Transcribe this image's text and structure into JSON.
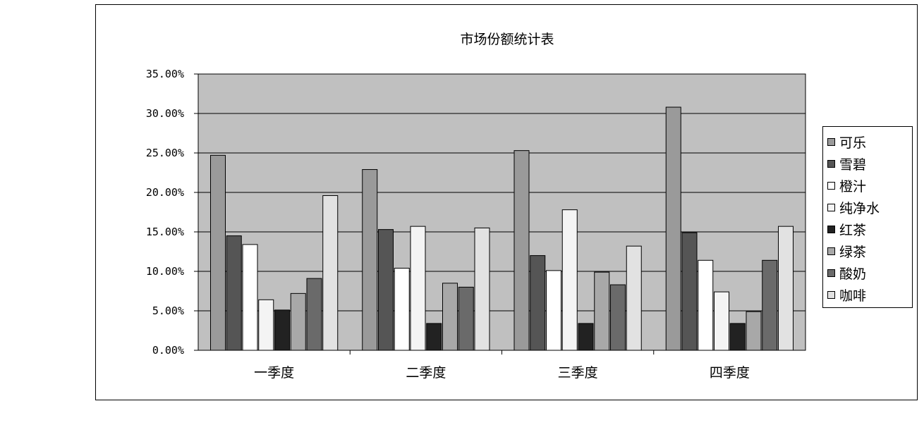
{
  "chart_data": {
    "type": "bar",
    "title": "市场份额统计表",
    "categories": [
      "一季度",
      "二季度",
      "三季度",
      "四季度"
    ],
    "ylim": [
      0,
      0.35
    ],
    "yticks": [
      "0.00%",
      "5.00%",
      "10.00%",
      "15.00%",
      "20.00%",
      "25.00%",
      "30.00%",
      "35.00%"
    ],
    "grid": true,
    "legend_position": "right",
    "plot_background": "#c0c0c0",
    "series": [
      {
        "name": "可乐",
        "color": "#9a9a9a",
        "values": [
          0.247,
          0.229,
          0.253,
          0.308
        ]
      },
      {
        "name": "雪碧",
        "color": "#555555",
        "values": [
          0.145,
          0.153,
          0.12,
          0.149
        ]
      },
      {
        "name": "橙汁",
        "color": "#ffffff",
        "values": [
          0.134,
          0.104,
          0.101,
          0.114
        ]
      },
      {
        "name": "纯净水",
        "color": "#f4f4f4",
        "values": [
          0.064,
          0.157,
          0.178,
          0.074
        ]
      },
      {
        "name": "红茶",
        "color": "#222222",
        "values": [
          0.051,
          0.034,
          0.034,
          0.034
        ]
      },
      {
        "name": "绿茶",
        "color": "#a8a8a8",
        "values": [
          0.072,
          0.085,
          0.099,
          0.049
        ]
      },
      {
        "name": "酸奶",
        "color": "#6a6a6a",
        "values": [
          0.091,
          0.08,
          0.083,
          0.114
        ]
      },
      {
        "name": "咖啡",
        "color": "#e2e2e2",
        "values": [
          0.196,
          0.155,
          0.132,
          0.157
        ]
      }
    ]
  }
}
